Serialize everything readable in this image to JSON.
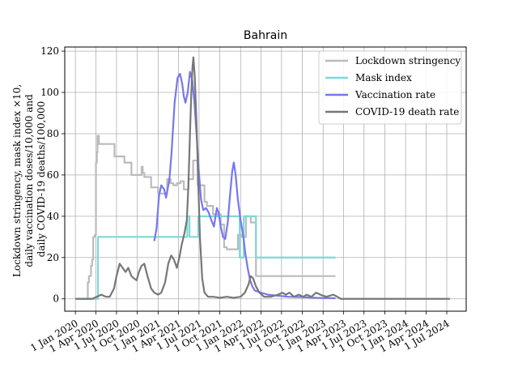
{
  "chart_data": {
    "type": "line",
    "title": "Bahrain",
    "ylabel_lines": [
      "Lockdown stringency, mask index ×10,",
      "daily vaccination doses/10,000 and",
      "daily COVID-19 deaths/100,000"
    ],
    "xlabel": "",
    "ylim": [
      -6,
      122
    ],
    "yticks": [
      0,
      20,
      40,
      60,
      80,
      100,
      120
    ],
    "xlim": [
      "2019-11-15",
      "2024-09-25"
    ],
    "xticks": [
      {
        "date": "2020-01-01",
        "label": "1 Jan 2020"
      },
      {
        "date": "2020-04-01",
        "label": "1 Apr 2020"
      },
      {
        "date": "2020-07-01",
        "label": "1 Jul 2020"
      },
      {
        "date": "2020-10-01",
        "label": "1 Oct 2020"
      },
      {
        "date": "2021-01-01",
        "label": "1 Jan 2021"
      },
      {
        "date": "2021-04-01",
        "label": "1 Apr 2021"
      },
      {
        "date": "2021-07-01",
        "label": "1 Jul 2021"
      },
      {
        "date": "2021-10-01",
        "label": "1 Oct 2021"
      },
      {
        "date": "2022-01-01",
        "label": "1 Jan 2022"
      },
      {
        "date": "2022-04-01",
        "label": "1 Apr 2022"
      },
      {
        "date": "2022-07-01",
        "label": "1 Jul 2022"
      },
      {
        "date": "2022-10-01",
        "label": "1 Oct 2022"
      },
      {
        "date": "2023-01-01",
        "label": "1 Jan 2023"
      },
      {
        "date": "2023-04-01",
        "label": "1 Apr 2023"
      },
      {
        "date": "2023-07-01",
        "label": "1 Jul 2023"
      },
      {
        "date": "2023-10-01",
        "label": "1 Oct 2023"
      },
      {
        "date": "2024-01-01",
        "label": "1 Jan 2024"
      },
      {
        "date": "2024-04-01",
        "label": "1 Apr 2024"
      },
      {
        "date": "2024-07-01",
        "label": "1 Jul 2024"
      }
    ],
    "grid": true,
    "legend_position": "top-right",
    "series": [
      {
        "name": "Lockdown stringency",
        "color": "#bbbbbb",
        "step": true,
        "points": [
          [
            "2020-01-01",
            0
          ],
          [
            "2020-02-20",
            0
          ],
          [
            "2020-02-25",
            8
          ],
          [
            "2020-03-01",
            11
          ],
          [
            "2020-03-10",
            16
          ],
          [
            "2020-03-15",
            19
          ],
          [
            "2020-03-20",
            30
          ],
          [
            "2020-03-27",
            31
          ],
          [
            "2020-04-01",
            66
          ],
          [
            "2020-04-05",
            71
          ],
          [
            "2020-04-08",
            79
          ],
          [
            "2020-04-14",
            75
          ],
          [
            "2020-05-01",
            75
          ],
          [
            "2020-06-01",
            75
          ],
          [
            "2020-06-22",
            69
          ],
          [
            "2020-08-05",
            66
          ],
          [
            "2020-09-05",
            60
          ],
          [
            "2020-10-20",
            64
          ],
          [
            "2020-10-25",
            61
          ],
          [
            "2020-11-01",
            59
          ],
          [
            "2020-12-01",
            54
          ],
          [
            "2021-01-01",
            51
          ],
          [
            "2021-02-10",
            58
          ],
          [
            "2021-02-25",
            56
          ],
          [
            "2021-03-10",
            55
          ],
          [
            "2021-03-25",
            56
          ],
          [
            "2021-04-10",
            57
          ],
          [
            "2021-04-25",
            53
          ],
          [
            "2021-05-15",
            58
          ],
          [
            "2021-06-05",
            67
          ],
          [
            "2021-06-25",
            55
          ],
          [
            "2021-07-25",
            47
          ],
          [
            "2021-08-05",
            45
          ],
          [
            "2021-09-01",
            41
          ],
          [
            "2021-10-05",
            36
          ],
          [
            "2021-10-20",
            25
          ],
          [
            "2021-11-01",
            24
          ],
          [
            "2021-12-20",
            31
          ],
          [
            "2022-01-05",
            30
          ],
          [
            "2022-01-25",
            40
          ],
          [
            "2022-02-15",
            37
          ],
          [
            "2022-03-01",
            37
          ],
          [
            "2022-03-10",
            11
          ],
          [
            "2023-02-25",
            11
          ]
        ]
      },
      {
        "name": "Mask index",
        "color": "#7fd8d8",
        "step": true,
        "points": [
          [
            "2020-01-01",
            0
          ],
          [
            "2020-04-01",
            0
          ],
          [
            "2020-04-10",
            30
          ],
          [
            "2021-05-01",
            30
          ],
          [
            "2021-05-10",
            40
          ],
          [
            "2021-05-20",
            30
          ],
          [
            "2021-06-20",
            30
          ],
          [
            "2021-06-28",
            40
          ],
          [
            "2021-12-20",
            40
          ],
          [
            "2021-12-28",
            20
          ],
          [
            "2022-01-15",
            40
          ],
          [
            "2022-03-01",
            40
          ],
          [
            "2022-03-10",
            20
          ],
          [
            "2023-02-25",
            20
          ]
        ]
      },
      {
        "name": "Vaccination rate",
        "color": "#7777ee",
        "step": false,
        "points": [
          [
            "2020-12-15",
            28
          ],
          [
            "2020-12-25",
            34
          ],
          [
            "2021-01-05",
            50
          ],
          [
            "2021-01-15",
            55
          ],
          [
            "2021-01-28",
            53
          ],
          [
            "2021-02-05",
            49
          ],
          [
            "2021-02-12",
            53
          ],
          [
            "2021-02-20",
            58
          ],
          [
            "2021-03-01",
            70
          ],
          [
            "2021-03-15",
            95
          ],
          [
            "2021-03-28",
            107
          ],
          [
            "2021-04-08",
            109
          ],
          [
            "2021-04-18",
            104
          ],
          [
            "2021-04-25",
            98
          ],
          [
            "2021-05-02",
            95
          ],
          [
            "2021-05-12",
            100
          ],
          [
            "2021-05-22",
            110
          ],
          [
            "2021-06-01",
            106
          ],
          [
            "2021-06-10",
            96
          ],
          [
            "2021-06-20",
            80
          ],
          [
            "2021-06-30",
            62
          ],
          [
            "2021-07-10",
            48
          ],
          [
            "2021-07-20",
            43
          ],
          [
            "2021-08-01",
            44
          ],
          [
            "2021-08-12",
            42
          ],
          [
            "2021-08-25",
            38
          ],
          [
            "2021-09-05",
            35
          ],
          [
            "2021-09-18",
            44
          ],
          [
            "2021-09-25",
            42
          ],
          [
            "2021-10-05",
            35
          ],
          [
            "2021-10-15",
            30
          ],
          [
            "2021-10-25",
            29
          ],
          [
            "2021-11-05",
            37
          ],
          [
            "2021-11-15",
            50
          ],
          [
            "2021-11-25",
            62
          ],
          [
            "2021-12-02",
            66
          ],
          [
            "2021-12-10",
            60
          ],
          [
            "2021-12-20",
            48
          ],
          [
            "2022-01-01",
            38
          ],
          [
            "2022-01-12",
            31
          ],
          [
            "2022-01-22",
            22
          ],
          [
            "2022-02-01",
            15
          ],
          [
            "2022-02-12",
            9
          ],
          [
            "2022-02-22",
            6
          ],
          [
            "2022-03-05",
            4
          ],
          [
            "2022-04-01",
            3
          ],
          [
            "2022-05-01",
            2
          ],
          [
            "2022-06-15",
            1.5
          ],
          [
            "2022-08-01",
            1
          ],
          [
            "2022-10-01",
            0.8
          ],
          [
            "2022-12-01",
            0.5
          ],
          [
            "2023-02-25",
            0.3
          ]
        ]
      },
      {
        "name": "COVID-19 death rate",
        "color": "#777777",
        "step": false,
        "points": [
          [
            "2020-01-01",
            0
          ],
          [
            "2020-03-15",
            0
          ],
          [
            "2020-04-05",
            1
          ],
          [
            "2020-04-25",
            2
          ],
          [
            "2020-05-15",
            1
          ],
          [
            "2020-06-01",
            1
          ],
          [
            "2020-06-20",
            5
          ],
          [
            "2020-07-01",
            11
          ],
          [
            "2020-07-15",
            17
          ],
          [
            "2020-07-28",
            15
          ],
          [
            "2020-08-10",
            13
          ],
          [
            "2020-08-22",
            15
          ],
          [
            "2020-09-05",
            11
          ],
          [
            "2020-09-15",
            10
          ],
          [
            "2020-09-28",
            9
          ],
          [
            "2020-10-08",
            13
          ],
          [
            "2020-10-20",
            16
          ],
          [
            "2020-11-01",
            17
          ],
          [
            "2020-11-15",
            11
          ],
          [
            "2020-12-01",
            5
          ],
          [
            "2020-12-15",
            3
          ],
          [
            "2021-01-01",
            2
          ],
          [
            "2021-01-15",
            3
          ],
          [
            "2021-02-01",
            8
          ],
          [
            "2021-02-15",
            17
          ],
          [
            "2021-02-28",
            21
          ],
          [
            "2021-03-12",
            19
          ],
          [
            "2021-03-25",
            15
          ],
          [
            "2021-04-05",
            20
          ],
          [
            "2021-04-15",
            26
          ],
          [
            "2021-04-28",
            32
          ],
          [
            "2021-05-08",
            38
          ],
          [
            "2021-05-15",
            55
          ],
          [
            "2021-05-22",
            80
          ],
          [
            "2021-05-28",
            100
          ],
          [
            "2021-06-02",
            112
          ],
          [
            "2021-06-06",
            117
          ],
          [
            "2021-06-12",
            108
          ],
          [
            "2021-06-20",
            85
          ],
          [
            "2021-06-28",
            55
          ],
          [
            "2021-07-05",
            30
          ],
          [
            "2021-07-15",
            10
          ],
          [
            "2021-07-25",
            3
          ],
          [
            "2021-08-10",
            1
          ],
          [
            "2021-09-01",
            1
          ],
          [
            "2021-10-01",
            0.5
          ],
          [
            "2021-11-01",
            1
          ],
          [
            "2021-12-01",
            0.5
          ],
          [
            "2022-01-01",
            1
          ],
          [
            "2022-01-20",
            3
          ],
          [
            "2022-02-05",
            7
          ],
          [
            "2022-02-15",
            11
          ],
          [
            "2022-02-25",
            10
          ],
          [
            "2022-03-10",
            6
          ],
          [
            "2022-03-25",
            3
          ],
          [
            "2022-04-15",
            1
          ],
          [
            "2022-05-15",
            1
          ],
          [
            "2022-06-15",
            2
          ],
          [
            "2022-07-05",
            3
          ],
          [
            "2022-07-20",
            2
          ],
          [
            "2022-08-05",
            3
          ],
          [
            "2022-08-25",
            1
          ],
          [
            "2022-09-15",
            2
          ],
          [
            "2022-10-05",
            1
          ],
          [
            "2022-10-20",
            2
          ],
          [
            "2022-11-10",
            1
          ],
          [
            "2022-12-01",
            3
          ],
          [
            "2022-12-20",
            2
          ],
          [
            "2023-01-15",
            1
          ],
          [
            "2023-02-15",
            2
          ],
          [
            "2023-03-05",
            1
          ],
          [
            "2023-03-20",
            0
          ],
          [
            "2024-07-15",
            0
          ]
        ]
      }
    ]
  }
}
